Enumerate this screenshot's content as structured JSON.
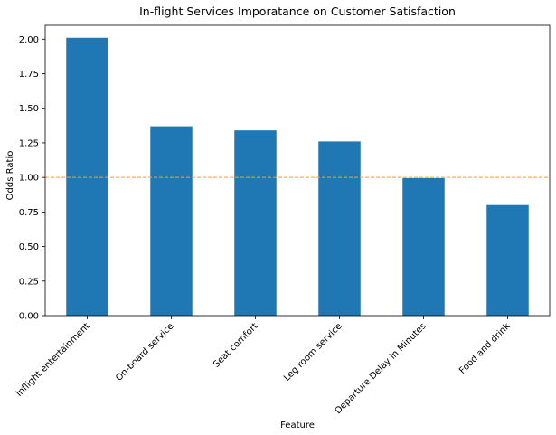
{
  "chart_data": {
    "type": "bar",
    "title": "In-flight Services Imporatance on Customer Satisfaction",
    "xlabel": "Feature",
    "ylabel": "Odds Ratio",
    "categories": [
      "Inflight entertainment",
      "On-board service",
      "Seat comfort",
      "Leg room service",
      "Departure Delay in Minutes",
      "Food and drink"
    ],
    "values": [
      2.01,
      1.37,
      1.34,
      1.26,
      0.995,
      0.8
    ],
    "ylim": [
      0,
      2.1
    ],
    "yticks": [
      "0.00",
      "0.25",
      "0.50",
      "0.75",
      "1.00",
      "1.25",
      "1.50",
      "1.75",
      "2.00"
    ],
    "reference_line": {
      "value": 1.0,
      "style": "dashed",
      "color": "#ffa500"
    },
    "bar_color": "#1f77b4",
    "grid": false,
    "legend": "none"
  }
}
